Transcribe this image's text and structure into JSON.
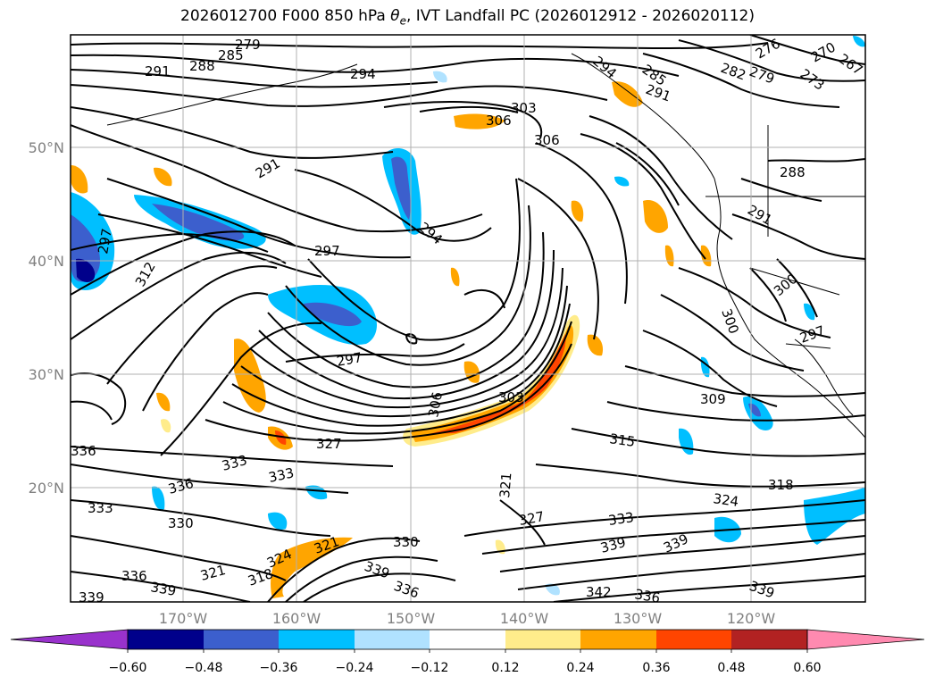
{
  "title": {
    "prefix": "2026012700 F000 850 hPa ",
    "symbol": "θ",
    "subscript": "e",
    "suffix": ", IVT Landfall PC (2026012912 - 2026020112)"
  },
  "map": {
    "lat_ticks": [
      "50°N",
      "40°N",
      "30°N",
      "20°N"
    ],
    "lon_ticks": [
      "170°W",
      "160°W",
      "150°W",
      "140°W",
      "130°W",
      "120°W"
    ],
    "contour_labels": [
      "279",
      "285",
      "288",
      "291",
      "294",
      "306",
      "303",
      "306",
      "294",
      "285",
      "291",
      "282",
      "279",
      "276",
      "273",
      "270",
      "267",
      "291",
      "288",
      "297",
      "294",
      "297",
      "291",
      "312",
      "297",
      "300",
      "300",
      "297",
      "309",
      "306",
      "303",
      "327",
      "315",
      "318",
      "336",
      "333",
      "336",
      "333",
      "330",
      "333",
      "321",
      "321",
      "324",
      "333",
      "339",
      "339",
      "330",
      "327",
      "324",
      "318",
      "321",
      "339",
      "336",
      "336",
      "339",
      "342",
      "336",
      "339",
      "339"
    ],
    "colors": {
      "contour": "#000000",
      "coast": "#000000",
      "grid": "#b0b0b0",
      "frame": "#000000"
    }
  },
  "colorbar": {
    "ticks": [
      "−0.60",
      "−0.48",
      "−0.36",
      "−0.24",
      "−0.12",
      "0.12",
      "0.24",
      "0.36",
      "0.48",
      "0.60"
    ],
    "colors": [
      "#9932CC",
      "#00008B",
      "#3C5FCD",
      "#00BFFF",
      "#B0E2FF",
      "#FFFFFF",
      "#FFEC8B",
      "#FFA500",
      "#FF4500",
      "#B22222",
      "#FF8AB0"
    ]
  }
}
